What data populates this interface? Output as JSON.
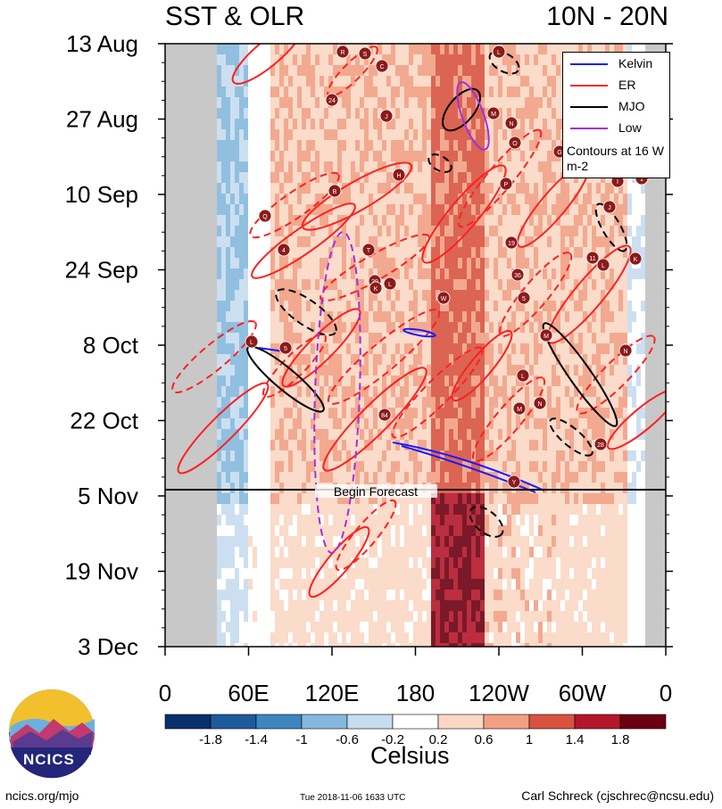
{
  "title_left": "SST & OLR",
  "title_right": "10N - 20N",
  "chart_data": {
    "type": "heatmap",
    "y_ticks": [
      "13 Aug",
      "27 Aug",
      "10 Sep",
      "24 Sep",
      "8 Oct",
      "22 Oct",
      "5 Nov",
      "19 Nov",
      "3 Dec"
    ],
    "x_ticks": [
      "0",
      "60E",
      "120E",
      "180",
      "120W",
      "60W",
      "0"
    ],
    "colorbar": {
      "labels": [
        "-1.8",
        "-1.4",
        "-1",
        "-0.6",
        "-0.2",
        "0.2",
        "0.6",
        "1",
        "1.4",
        "1.8"
      ],
      "colors": [
        "#08306b",
        "#1f5a9c",
        "#3d86c0",
        "#85b8dc",
        "#c7dcef",
        "#ffffff",
        "#fbd7c3",
        "#f1a084",
        "#d8533f",
        "#b4172a",
        "#6b0012"
      ],
      "units": "Celsius"
    },
    "legend": [
      {
        "name": "Kelvin",
        "color": "#1a1aff"
      },
      {
        "name": "ER",
        "color": "#ff2020"
      },
      {
        "name": "MJO",
        "color": "#000000"
      },
      {
        "name": "Low",
        "color": "#a030e0"
      }
    ],
    "legend_note": "Contours at 16 W m-2",
    "forecast_label": "Begin Forecast",
    "storm_markers": [
      "R",
      "S",
      "C",
      "24",
      "J",
      "L",
      "M",
      "N",
      "O",
      "G",
      "P",
      "B",
      "H",
      "1",
      "I",
      "J",
      "19",
      "11",
      "L",
      "K",
      "4",
      "T",
      "29",
      "K",
      "L",
      "W",
      "5",
      "L",
      "M",
      "N",
      "5",
      "L",
      "M",
      "N",
      "84",
      "28",
      "Y",
      "Q",
      "36"
    ]
  },
  "logo_text": "NCICS",
  "footer": {
    "left": "ncics.org/mjo",
    "middle": "Tue 2018-11-06 1633 UTC",
    "right": "Carl Schreck (cjschrec@ncsu.edu)"
  }
}
